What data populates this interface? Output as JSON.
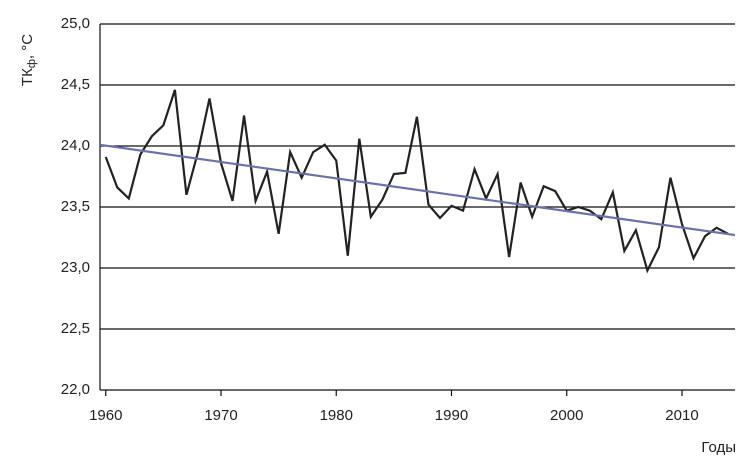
{
  "chart_data": {
    "type": "line",
    "ylabel": {
      "main": "ТК",
      "sub": "ф",
      "rest": ", °С"
    },
    "xlabel": "Годы",
    "x": [
      1960,
      1961,
      1962,
      1963,
      1964,
      1965,
      1966,
      1967,
      1968,
      1969,
      1970,
      1971,
      1972,
      1973,
      1974,
      1975,
      1976,
      1977,
      1978,
      1979,
      1980,
      1981,
      1982,
      1983,
      1984,
      1985,
      1986,
      1987,
      1988,
      1989,
      1990,
      1991,
      1992,
      1993,
      1994,
      1995,
      1996,
      1997,
      1998,
      1999,
      2000,
      2001,
      2002,
      2003,
      2004,
      2005,
      2006,
      2007,
      2008,
      2009,
      2010,
      2011,
      2012,
      2013,
      2014
    ],
    "series": [
      {
        "color": "#222222",
        "values": [
          23.91,
          23.66,
          23.57,
          23.93,
          24.08,
          24.17,
          24.46,
          23.6,
          23.95,
          24.39,
          23.86,
          23.55,
          24.25,
          23.55,
          23.79,
          23.28,
          23.95,
          23.74,
          23.95,
          24.01,
          23.88,
          23.1,
          24.06,
          23.42,
          23.56,
          23.77,
          23.78,
          24.24,
          23.52,
          23.41,
          23.51,
          23.47,
          23.81,
          23.57,
          23.77,
          23.09,
          23.7,
          23.42,
          23.67,
          23.63,
          23.47,
          23.5,
          23.47,
          23.4,
          23.62,
          23.14,
          23.31,
          22.98,
          23.17,
          23.74,
          23.36,
          23.08,
          23.26,
          23.33,
          23.28
        ]
      }
    ],
    "trend": {
      "color": "#6c72a8",
      "x": [
        1959.5,
        2014.6
      ],
      "values": [
        24.01,
        23.27
      ]
    },
    "xlim": [
      1959.5,
      2014.6
    ],
    "ylim": [
      22.0,
      25.0
    ],
    "xticks": [
      1960,
      1970,
      1980,
      1990,
      2000,
      2010
    ],
    "yticks": [
      {
        "value": 22.0,
        "label": "22,0"
      },
      {
        "value": 22.5,
        "label": "22,5"
      },
      {
        "value": 23.0,
        "label": "23,0"
      },
      {
        "value": 23.5,
        "label": "23,5"
      },
      {
        "value": 24.0,
        "label": "24,0"
      },
      {
        "value": 24.5,
        "label": "24,5"
      },
      {
        "value": 25.0,
        "label": "25,0"
      }
    ],
    "grid": true
  }
}
